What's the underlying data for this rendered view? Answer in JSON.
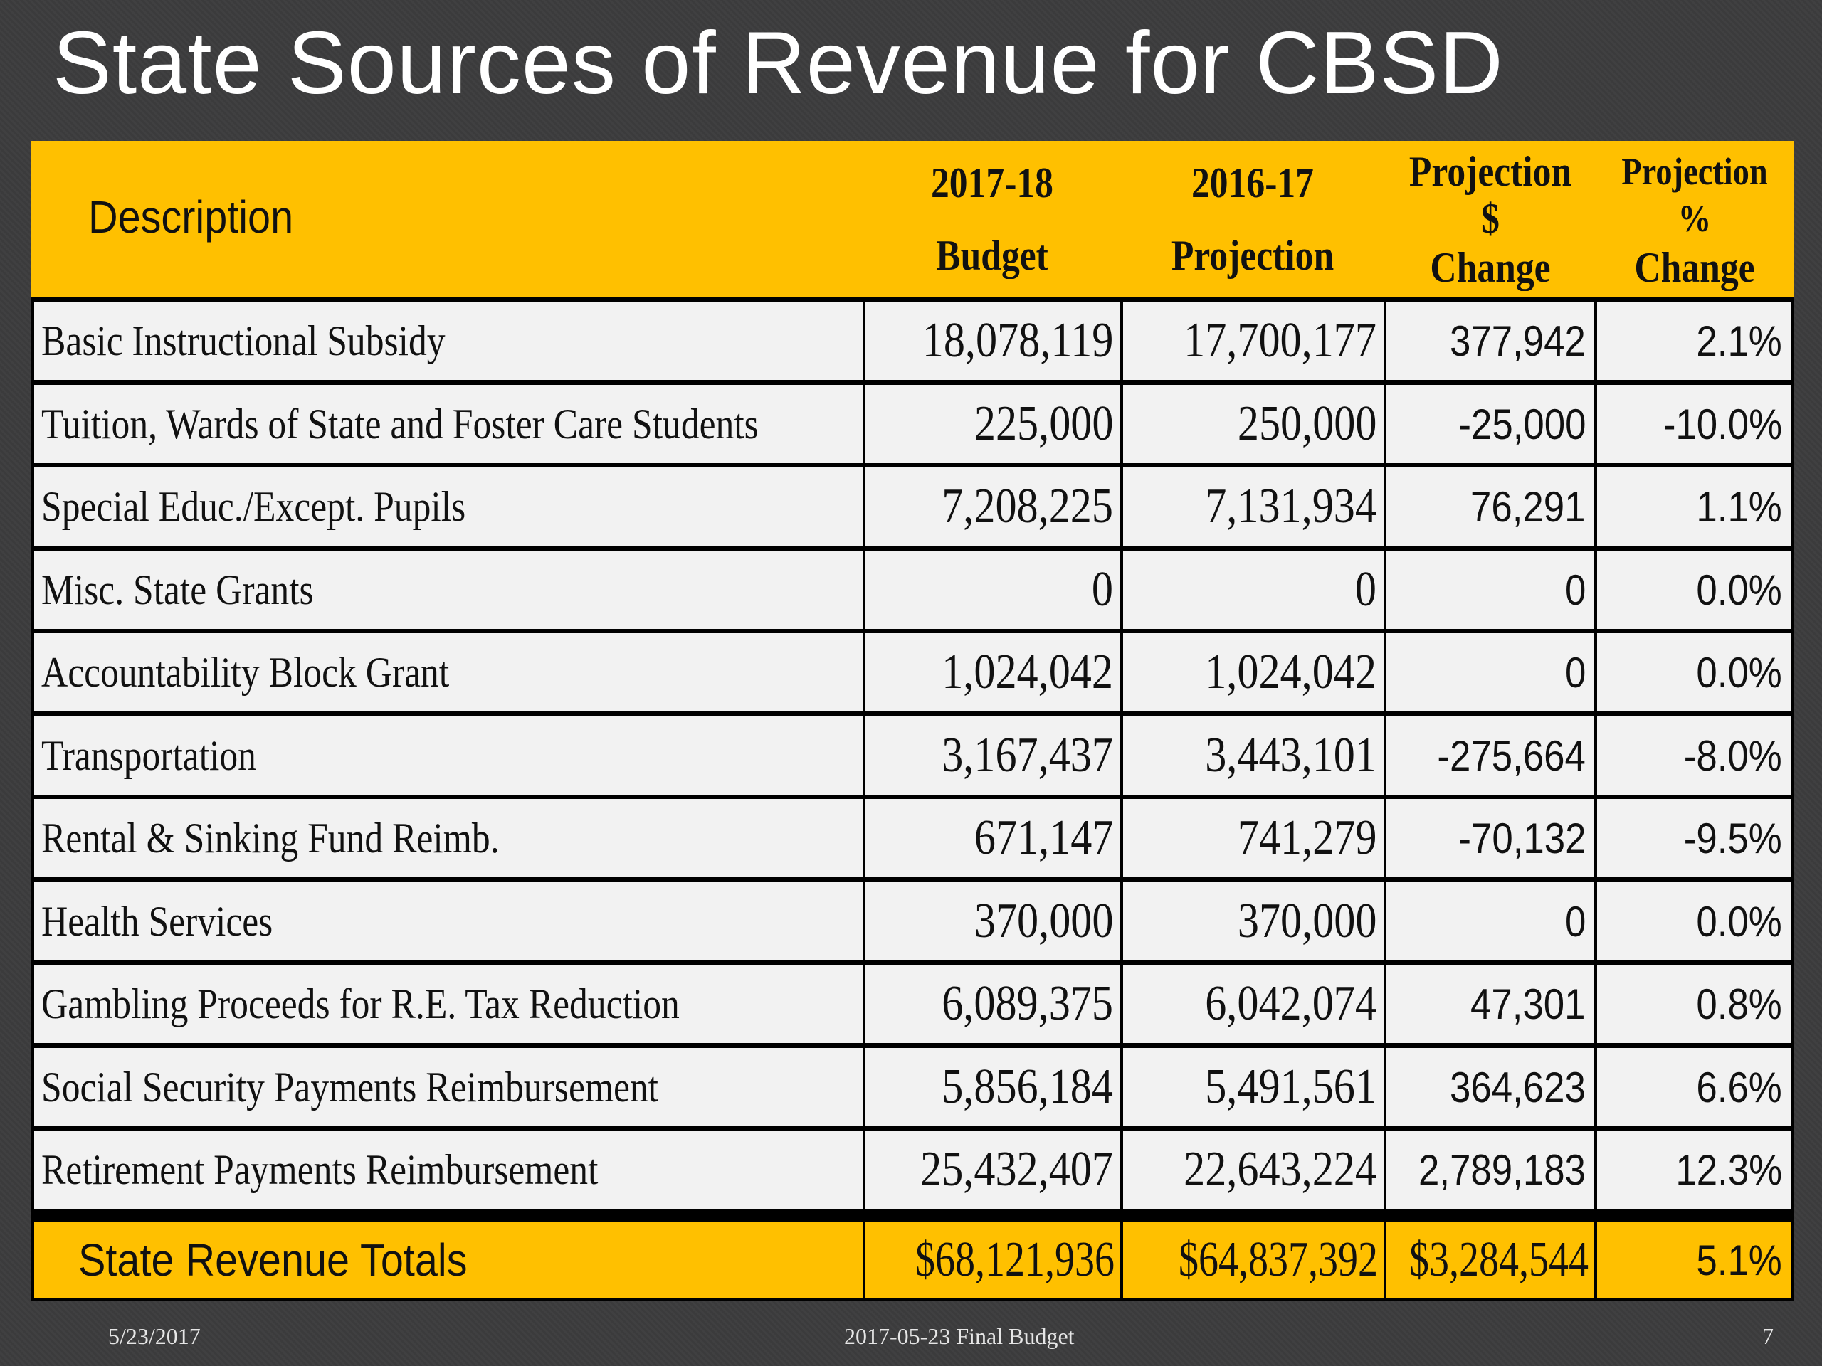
{
  "title": "State Sources of Revenue for CBSD",
  "table": {
    "header": {
      "description": "Description",
      "columns": [
        {
          "line1": "2017-18",
          "line2": "Budget"
        },
        {
          "line1": "2016-17",
          "line2": "Projection"
        },
        {
          "line1": "Projection $",
          "line2": "Change"
        },
        {
          "line1": "Projection %",
          "line2": "Change"
        }
      ]
    },
    "rows": [
      {
        "description": "Basic Instructional Subsidy",
        "budget": "18,078,119",
        "projection": "17,700,177",
        "change": "377,942",
        "pct": "2.1%"
      },
      {
        "description": "Tuition, Wards of State and Foster Care Students",
        "budget": "225,000",
        "projection": "250,000",
        "change": "-25,000",
        "pct": "-10.0%"
      },
      {
        "description": "Special Educ./Except. Pupils",
        "budget": "7,208,225",
        "projection": "7,131,934",
        "change": "76,291",
        "pct": "1.1%"
      },
      {
        "description": "Misc. State Grants",
        "budget": "0",
        "projection": "0",
        "change": "0",
        "pct": "0.0%"
      },
      {
        "description": "Accountability Block Grant",
        "budget": "1,024,042",
        "projection": "1,024,042",
        "change": "0",
        "pct": "0.0%"
      },
      {
        "description": "Transportation",
        "budget": "3,167,437",
        "projection": "3,443,101",
        "change": "-275,664",
        "pct": "-8.0%"
      },
      {
        "description": "Rental & Sinking Fund Reimb.",
        "budget": "671,147",
        "projection": "741,279",
        "change": "-70,132",
        "pct": "-9.5%"
      },
      {
        "description": "Health Services",
        "budget": "370,000",
        "projection": "370,000",
        "change": "0",
        "pct": "0.0%"
      },
      {
        "description": "Gambling Proceeds for R.E. Tax Reduction",
        "budget": "6,089,375",
        "projection": "6,042,074",
        "change": "47,301",
        "pct": "0.8%"
      },
      {
        "description": "Social Security Payments Reimbursement",
        "budget": "5,856,184",
        "projection": "5,491,561",
        "change": "364,623",
        "pct": "6.6%"
      },
      {
        "description": "Retirement Payments Reimbursement",
        "budget": "25,432,407",
        "projection": "22,643,224",
        "change": "2,789,183",
        "pct": "12.3%"
      }
    ],
    "total": {
      "description": "State Revenue Totals",
      "budget": "$68,121,936",
      "projection": "$64,837,392",
      "change": "$3,284,544",
      "pct": "5.1%"
    }
  },
  "footer": {
    "date": "5/23/2017",
    "center": "2017-05-23 Final Budget",
    "page": "7"
  },
  "colors": {
    "header_bg": "#ffc000",
    "slide_bg": "#3c3c3d",
    "cell_bg": "#f2f2f2"
  }
}
